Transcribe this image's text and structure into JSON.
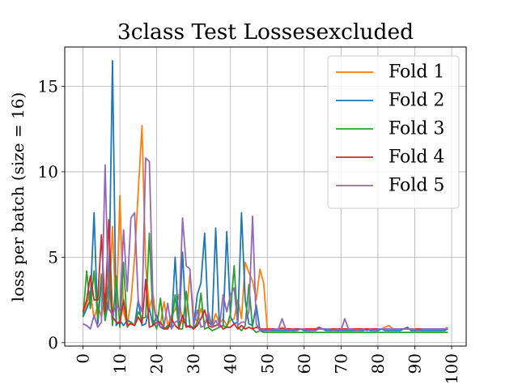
{
  "chart_data": {
    "type": "line",
    "title": "3class Test Lossesexcluded",
    "xlabel": "",
    "ylabel": "loss per batch (size = 16)",
    "xlim": [
      -4.95,
      103.95
    ],
    "ylim": [
      -0.2,
      17.3
    ],
    "xticks": [
      0,
      10,
      20,
      30,
      40,
      50,
      60,
      70,
      80,
      90,
      100
    ],
    "xtick_labels": [
      "0",
      "10",
      "20",
      "30",
      "40",
      "50",
      "60",
      "70",
      "80",
      "90",
      "100"
    ],
    "yticks": [
      0,
      5,
      10,
      15
    ],
    "ytick_labels": [
      "0",
      "5",
      "10",
      "15"
    ],
    "grid": true,
    "legend_position": "top-right",
    "series": [
      {
        "name": "Fold 1",
        "color": "#ff7f0e",
        "x": [
          0,
          1,
          2,
          3,
          4,
          5,
          6,
          7,
          8,
          9,
          10,
          11,
          12,
          13,
          14,
          15,
          16,
          17,
          18,
          19,
          20,
          21,
          22,
          23,
          24,
          25,
          26,
          27,
          28,
          29,
          30,
          31,
          32,
          33,
          34,
          35,
          36,
          37,
          38,
          39,
          40,
          41,
          42,
          43,
          44,
          45,
          46,
          47,
          48,
          49,
          50,
          51,
          52,
          53,
          54,
          55,
          56,
          57,
          58,
          59,
          60,
          61,
          62,
          63,
          64,
          65,
          66,
          67,
          68,
          69,
          70,
          71,
          72,
          73,
          74,
          75,
          76,
          77,
          78,
          79,
          80,
          81,
          82,
          83,
          84,
          85,
          86,
          87,
          88,
          89,
          90,
          91,
          92,
          93,
          94,
          95,
          96,
          97,
          98,
          99
        ],
        "y": [
          1.6,
          2.2,
          3.0,
          1.4,
          2.2,
          1.5,
          2.8,
          1.9,
          6.8,
          1.2,
          8.6,
          1.8,
          1.0,
          2.4,
          5.0,
          8.9,
          12.7,
          4.5,
          2.0,
          2.8,
          1.2,
          1.1,
          2.4,
          1.0,
          1.6,
          1.9,
          2.8,
          1.1,
          1.5,
          4.0,
          1.7,
          1.2,
          2.0,
          1.1,
          1.4,
          1.0,
          1.7,
          1.1,
          1.4,
          1.0,
          1.3,
          1.4,
          2.5,
          1.4,
          4.7,
          4.1,
          3.6,
          2.5,
          4.3,
          3.5,
          0.8,
          0.8,
          0.8,
          0.8,
          0.9,
          0.8,
          0.8,
          0.8,
          0.8,
          0.8,
          0.8,
          0.8,
          0.8,
          0.8,
          0.9,
          0.8,
          0.8,
          0.8,
          0.8,
          0.8,
          0.8,
          0.8,
          0.8,
          0.8,
          0.8,
          0.8,
          0.8,
          0.8,
          0.8,
          0.8,
          0.8,
          0.8,
          0.9,
          1.0,
          0.8,
          0.8,
          0.8,
          0.8,
          0.8,
          0.8,
          0.8,
          0.8,
          0.8,
          0.8,
          0.8,
          0.8,
          0.8,
          0.8,
          0.8,
          0.9
        ]
      },
      {
        "name": "Fold 2",
        "color": "#1f77b4",
        "x": [
          0,
          1,
          2,
          3,
          4,
          5,
          6,
          7,
          8,
          9,
          10,
          11,
          12,
          13,
          14,
          15,
          16,
          17,
          18,
          19,
          20,
          21,
          22,
          23,
          24,
          25,
          26,
          27,
          28,
          29,
          30,
          31,
          32,
          33,
          34,
          35,
          36,
          37,
          38,
          39,
          40,
          41,
          42,
          43,
          44,
          45,
          46,
          47,
          48,
          49,
          50,
          51,
          52,
          53,
          54,
          55,
          56,
          57,
          58,
          59,
          60,
          61,
          62,
          63,
          64,
          65,
          66,
          67,
          68,
          69,
          70,
          71,
          72,
          73,
          74,
          75,
          76,
          77,
          78,
          79,
          80,
          81,
          82,
          83,
          84,
          85,
          86,
          87,
          88,
          89,
          90,
          91,
          92,
          93,
          94,
          95,
          96,
          97,
          98,
          99
        ],
        "y": [
          1.5,
          2.0,
          2.5,
          7.6,
          1.1,
          3.5,
          1.3,
          2.6,
          16.5,
          1.0,
          1.3,
          1.0,
          1.3,
          1.2,
          1.0,
          2.5,
          1.0,
          1.1,
          2.0,
          1.0,
          1.6,
          0.9,
          0.8,
          0.9,
          1.0,
          5.0,
          0.8,
          5.3,
          1.0,
          0.9,
          0.9,
          2.8,
          3.5,
          6.4,
          1.2,
          1.0,
          6.7,
          0.9,
          1.0,
          6.5,
          1.5,
          1.1,
          1.2,
          7.6,
          2.5,
          1.1,
          1.0,
          2.2,
          0.7,
          0.7,
          0.7,
          0.7,
          0.7,
          0.7,
          0.7,
          0.7,
          0.7,
          0.7,
          0.7,
          0.8,
          0.7,
          0.7,
          0.7,
          0.7,
          0.9,
          0.8,
          0.7,
          0.7,
          0.7,
          0.7,
          0.7,
          0.7,
          0.7,
          0.7,
          0.7,
          0.7,
          0.7,
          0.8,
          0.7,
          0.7,
          0.7,
          0.8,
          0.7,
          0.7,
          0.7,
          0.7,
          0.7,
          0.8,
          0.9,
          0.7,
          0.7,
          0.7,
          0.7,
          0.7,
          0.7,
          0.7,
          0.7,
          0.7,
          0.7,
          0.8
        ]
      },
      {
        "name": "Fold 3",
        "color": "#2ca02c",
        "x": [
          0,
          1,
          2,
          3,
          4,
          5,
          6,
          7,
          8,
          9,
          10,
          11,
          12,
          13,
          14,
          15,
          16,
          17,
          18,
          19,
          20,
          21,
          22,
          23,
          24,
          25,
          26,
          27,
          28,
          29,
          30,
          31,
          32,
          33,
          34,
          35,
          36,
          37,
          38,
          39,
          40,
          41,
          42,
          43,
          44,
          45,
          46,
          47,
          48,
          49,
          50,
          51,
          52,
          53,
          54,
          55,
          56,
          57,
          58,
          59,
          60,
          61,
          62,
          63,
          64,
          65,
          66,
          67,
          68,
          69,
          70,
          71,
          72,
          73,
          74,
          75,
          76,
          77,
          78,
          79,
          80,
          81,
          82,
          83,
          84,
          85,
          86,
          87,
          88,
          89,
          90,
          91,
          92,
          93,
          94,
          95,
          96,
          97,
          98,
          99
        ],
        "y": [
          1.5,
          4.2,
          2.0,
          4.2,
          1.4,
          4.0,
          1.3,
          4.1,
          1.0,
          3.9,
          0.9,
          4.7,
          0.9,
          1.2,
          1.0,
          1.8,
          1.4,
          1.5,
          6.4,
          1.3,
          0.8,
          2.6,
          0.8,
          1.0,
          0.9,
          2.8,
          0.8,
          0.8,
          3.0,
          1.0,
          0.8,
          1.2,
          2.9,
          0.8,
          0.9,
          0.7,
          0.8,
          0.9,
          1.0,
          0.9,
          1.7,
          4.5,
          0.9,
          0.7,
          1.0,
          3.4,
          0.8,
          0.6,
          0.7,
          0.6,
          0.6,
          0.6,
          0.6,
          0.6,
          0.6,
          0.6,
          0.6,
          0.6,
          0.6,
          0.6,
          0.6,
          0.6,
          0.6,
          0.6,
          0.6,
          0.6,
          0.6,
          0.6,
          0.6,
          0.6,
          0.6,
          0.6,
          0.6,
          0.6,
          0.6,
          0.6,
          0.6,
          0.6,
          0.6,
          0.6,
          0.6,
          0.6,
          0.6,
          0.6,
          0.6,
          0.6,
          0.6,
          0.6,
          0.6,
          0.6,
          0.6,
          0.6,
          0.6,
          0.6,
          0.6,
          0.6,
          0.6,
          0.6,
          0.6,
          0.6
        ]
      },
      {
        "name": "Fold 4",
        "color": "#d62728",
        "x": [
          0,
          1,
          2,
          3,
          4,
          5,
          6,
          7,
          8,
          9,
          10,
          11,
          12,
          13,
          14,
          15,
          16,
          17,
          18,
          19,
          20,
          21,
          22,
          23,
          24,
          25,
          26,
          27,
          28,
          29,
          30,
          31,
          32,
          33,
          34,
          35,
          36,
          37,
          38,
          39,
          40,
          41,
          42,
          43,
          44,
          45,
          46,
          47,
          48,
          49,
          50,
          51,
          52,
          53,
          54,
          55,
          56,
          57,
          58,
          59,
          60,
          61,
          62,
          63,
          64,
          65,
          66,
          67,
          68,
          69,
          70,
          71,
          72,
          73,
          74,
          75,
          76,
          77,
          78,
          79,
          80,
          81,
          82,
          83,
          84,
          85,
          86,
          87,
          88,
          89,
          90,
          91,
          92,
          93,
          94,
          95,
          96,
          97,
          98,
          99
        ],
        "y": [
          1.8,
          2.5,
          3.9,
          2.5,
          2.5,
          6.3,
          1.8,
          7.2,
          1.5,
          1.2,
          1.1,
          2.5,
          1.0,
          1.1,
          1.0,
          1.5,
          1.1,
          3.7,
          0.9,
          1.0,
          1.2,
          1.2,
          0.8,
          0.8,
          1.4,
          1.0,
          0.8,
          1.6,
          0.9,
          1.0,
          0.8,
          1.0,
          1.4,
          1.9,
          1.0,
          0.9,
          1.0,
          1.1,
          0.8,
          0.9,
          0.9,
          1.1,
          0.8,
          1.0,
          0.8,
          0.9,
          0.8,
          0.9,
          0.8,
          0.8,
          0.8,
          0.8,
          0.8,
          0.8,
          0.8,
          0.8,
          0.8,
          0.8,
          0.8,
          0.8,
          0.8,
          0.8,
          0.8,
          0.8,
          0.8,
          0.8,
          0.8,
          0.8,
          0.8,
          0.8,
          0.8,
          0.8,
          0.8,
          0.8,
          0.8,
          0.8,
          0.8,
          0.8,
          0.8,
          0.8,
          0.8,
          0.8,
          0.8,
          0.8,
          0.8,
          0.8,
          0.8,
          0.8,
          0.8,
          0.8,
          0.8,
          0.8,
          0.8,
          0.8,
          0.8,
          0.8,
          0.8,
          0.8,
          0.8,
          0.8
        ]
      },
      {
        "name": "Fold 5",
        "color": "#9467bd",
        "x": [
          0,
          1,
          2,
          3,
          4,
          5,
          6,
          7,
          8,
          9,
          10,
          11,
          12,
          13,
          14,
          15,
          16,
          17,
          18,
          19,
          20,
          21,
          22,
          23,
          24,
          25,
          26,
          27,
          28,
          29,
          30,
          31,
          32,
          33,
          34,
          35,
          36,
          37,
          38,
          39,
          40,
          41,
          42,
          43,
          44,
          45,
          46,
          47,
          48,
          49,
          50,
          51,
          52,
          53,
          54,
          55,
          56,
          57,
          58,
          59,
          60,
          61,
          62,
          63,
          64,
          65,
          66,
          67,
          68,
          69,
          70,
          71,
          72,
          73,
          74,
          75,
          76,
          77,
          78,
          79,
          80,
          81,
          82,
          83,
          84,
          85,
          86,
          87,
          88,
          89,
          90,
          91,
          92,
          93,
          94,
          95,
          96,
          97,
          98,
          99
        ],
        "y": [
          1.1,
          1.0,
          0.8,
          1.6,
          0.9,
          1.2,
          10.4,
          2.0,
          1.6,
          2.2,
          1.9,
          6.6,
          3.0,
          7.3,
          7.6,
          2.4,
          1.8,
          10.8,
          10.6,
          2.3,
          1.2,
          0.9,
          1.0,
          2.3,
          0.8,
          1.2,
          1.3,
          7.3,
          4.5,
          4.3,
          1.0,
          1.9,
          0.9,
          1.0,
          1.8,
          0.9,
          1.3,
          0.9,
          2.8,
          1.8,
          2.8,
          3.2,
          1.0,
          1.2,
          1.2,
          1.8,
          7.4,
          1.1,
          0.7,
          0.8,
          0.7,
          0.7,
          0.8,
          0.8,
          1.4,
          0.8,
          0.7,
          0.8,
          0.7,
          0.8,
          0.8,
          0.7,
          0.7,
          0.7,
          0.8,
          0.8,
          0.8,
          0.8,
          0.7,
          0.8,
          0.7,
          1.4,
          0.8,
          0.8,
          0.7,
          0.7,
          0.8,
          0.7,
          0.8,
          0.7,
          0.8,
          0.8,
          0.8,
          0.8,
          0.8,
          0.8,
          0.8,
          0.8,
          0.8,
          0.8,
          0.8,
          0.7,
          0.8,
          0.8,
          0.8,
          0.8,
          0.8,
          0.8,
          0.8,
          0.8
        ]
      }
    ]
  }
}
